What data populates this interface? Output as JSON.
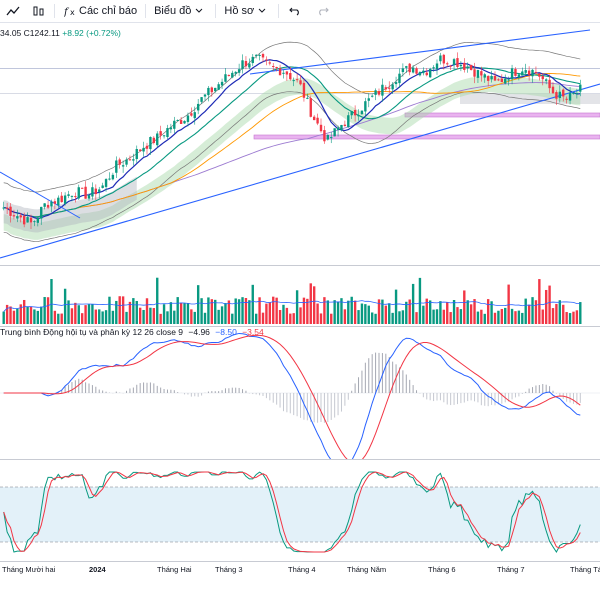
{
  "toolbar": {
    "indicators_label": "Các chỉ báo",
    "chart_label": "Biểu đồ",
    "profile_label": "Hồ sơ"
  },
  "legend": {
    "partial_open": "34.05",
    "close": "C1242.11",
    "change": "+8.92 (+0.72%)"
  },
  "macd": {
    "label": "Trung bình Động hội tụ và phân kỳ 12 26 close 9",
    "hist": "−4.96",
    "macd": "−8.50",
    "signal": "−3.54"
  },
  "xaxis": [
    "Tháng Mười hai",
    "2024",
    "Tháng Hai",
    "Tháng 3",
    "Tháng 4",
    "Tháng Năm",
    "Tháng 6",
    "Tháng 7",
    "Tháng Tám"
  ],
  "colors": {
    "up": "#089981",
    "down": "#f23645",
    "macd": "#2962ff",
    "signal": "#f23645",
    "trend": "#2962ff",
    "purple_zone": "#e9b3ef",
    "stoch_band": "#d7ebf7"
  },
  "chart_data": {
    "type": "line",
    "series": [
      {
        "close": [
          1100,
          1090,
          1080,
          1105,
          1110,
          1120,
          1115,
          1125,
          1150,
          1160,
          1175,
          1185,
          1200,
          1210,
          1230,
          1245,
          1260,
          1275,
          1280,
          1270,
          1265,
          1250,
          1210,
          1180,
          1200,
          1215,
          1230,
          1245,
          1260,
          1270,
          1265,
          1280,
          1278,
          1270,
          1260,
          1250,
          1262,
          1270,
          1262,
          1240,
          1230,
          1242.11
        ]
      }
    ]
  }
}
